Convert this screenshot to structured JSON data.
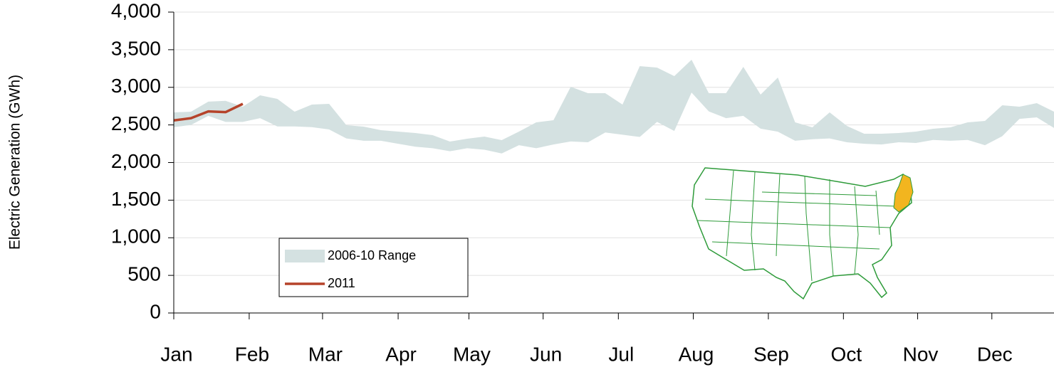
{
  "chart_data": {
    "type": "range",
    "y_label": "Electric Generation (GWh)",
    "x": [
      0,
      1,
      2,
      3,
      4,
      5,
      6,
      7,
      8,
      9,
      10,
      11,
      12,
      13,
      14,
      15,
      16,
      17,
      18,
      19,
      20,
      21,
      22,
      23,
      24,
      25,
      26,
      27,
      28,
      29,
      30,
      31,
      32,
      33,
      34,
      35,
      36,
      37,
      38,
      39,
      40,
      41,
      42,
      43,
      44,
      45,
      46,
      47,
      48,
      49,
      50,
      51
    ],
    "xlim": [
      0,
      51
    ],
    "xticks": [
      {
        "value": 0,
        "label": "Jan"
      },
      {
        "value": 4.37,
        "label": "Feb"
      },
      {
        "value": 8.62,
        "label": "Mar"
      },
      {
        "value": 13.0,
        "label": "Apr"
      },
      {
        "value": 17.1,
        "label": "May"
      },
      {
        "value": 21.4,
        "label": "Jun"
      },
      {
        "value": 25.76,
        "label": "Jul"
      },
      {
        "value": 30.1,
        "label": "Aug"
      },
      {
        "value": 34.45,
        "label": "Sep"
      },
      {
        "value": 38.8,
        "label": "Oct"
      },
      {
        "value": 43.1,
        "label": "Nov"
      },
      {
        "value": 47.4,
        "label": "Dec"
      }
    ],
    "ylim": [
      0,
      4000
    ],
    "yticks": [
      0,
      500,
      {
        "value": 1000,
        "label": "1,000"
      },
      {
        "value": 1500,
        "label": "1,500"
      },
      {
        "value": 2000,
        "label": "2,000"
      },
      {
        "value": 2500,
        "label": "2,500"
      },
      {
        "value": 3000,
        "label": "3,000"
      },
      {
        "value": 3500,
        "label": "3,500"
      },
      {
        "value": 4000,
        "label": "4,000"
      }
    ],
    "grid": true,
    "series": [
      {
        "name": "2006-10 Range",
        "color": "#d4e1e1",
        "high": [
          2667,
          2676,
          2810,
          2820,
          2742,
          2894,
          2846,
          2676,
          2771,
          2780,
          2496,
          2478,
          2430,
          2411,
          2392,
          2364,
          2279,
          2317,
          2345,
          2298,
          2411,
          2534,
          2563,
          3007,
          2922,
          2922,
          2771,
          3281,
          3262,
          3149,
          3366,
          2922,
          2922,
          3272,
          2903,
          3130,
          2534,
          2468,
          2667,
          2487,
          2383,
          2383,
          2392,
          2411,
          2449,
          2468,
          2534,
          2553,
          2761,
          2742,
          2790,
          2676
        ],
        "low": [
          2470,
          2500,
          2620,
          2540,
          2540,
          2590,
          2480,
          2480,
          2470,
          2440,
          2320,
          2290,
          2290,
          2250,
          2210,
          2190,
          2150,
          2190,
          2170,
          2120,
          2230,
          2190,
          2240,
          2280,
          2270,
          2400,
          2370,
          2340,
          2540,
          2420,
          2930,
          2680,
          2590,
          2620,
          2450,
          2410,
          2290,
          2310,
          2320,
          2270,
          2250,
          2240,
          2270,
          2260,
          2300,
          2290,
          2300,
          2230,
          2350,
          2580,
          2600,
          2460
        ]
      },
      {
        "name": "2011",
        "color": "#b5432a",
        "values": [
          2560,
          2590,
          2680,
          2670,
          2780,
          null,
          null,
          null,
          null,
          null,
          null,
          null,
          null,
          null,
          null,
          null,
          null,
          null,
          null,
          null,
          null,
          null,
          null,
          null,
          null,
          null,
          null,
          null,
          null,
          null,
          null,
          null,
          null,
          null,
          null,
          null,
          null,
          null,
          null,
          null,
          null,
          null,
          null,
          null,
          null,
          null,
          null,
          null,
          null,
          null,
          null,
          null
        ]
      }
    ]
  }
}
